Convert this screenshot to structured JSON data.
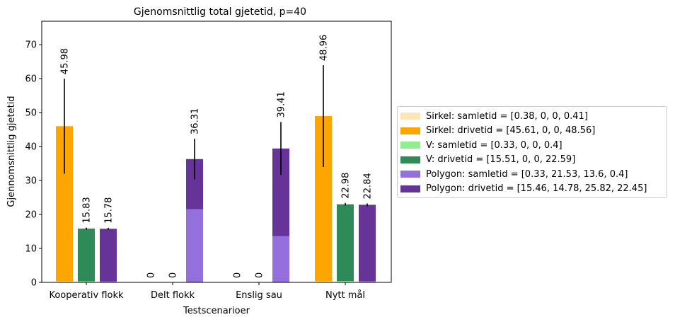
{
  "chart_data": {
    "type": "bar",
    "title": "Gjenomsnittlig total gjetetid, p=40",
    "xlabel": "Testscenarioer",
    "ylabel": "Gjennomsnittlig gjetetid",
    "categories": [
      "Kooperativ flokk",
      "Delt flokk",
      "Enslig sau",
      "Nytt mål"
    ],
    "ylim": [
      0,
      76.9
    ],
    "yticks": [
      0,
      10,
      20,
      30,
      40,
      50,
      60,
      70
    ],
    "grid": false,
    "legend_placement": "right",
    "groups": [
      {
        "name": "Sirkel",
        "samletid": [
          0.38,
          0,
          0,
          0.41
        ],
        "drivetid": [
          45.61,
          0,
          0,
          48.56
        ],
        "totals": [
          45.98,
          0,
          0,
          48.96
        ],
        "total_labels": [
          "45.98",
          "0",
          "0",
          "48.96"
        ],
        "errors": [
          14,
          0,
          0,
          15
        ],
        "samle_color": "#ffe4b5",
        "drive_color": "#ffa500"
      },
      {
        "name": "V",
        "samletid": [
          0.33,
          0,
          0,
          0.4
        ],
        "drivetid": [
          15.51,
          0,
          0,
          22.59
        ],
        "totals": [
          15.83,
          0,
          0,
          22.98
        ],
        "total_labels": [
          "15.83",
          "0",
          "0",
          "22.98"
        ],
        "errors": [
          0.3,
          0,
          0,
          0.4
        ],
        "samle_color": "#90ee90",
        "drive_color": "#2e8b57"
      },
      {
        "name": "Polygon",
        "samletid": [
          0.33,
          21.53,
          13.6,
          0.4
        ],
        "drivetid": [
          15.46,
          14.78,
          25.82,
          22.45
        ],
        "totals": [
          15.78,
          36.31,
          39.41,
          22.84
        ],
        "total_labels": [
          "15.78",
          "36.31",
          "39.41",
          "22.84"
        ],
        "errors": [
          0.3,
          6,
          7.8,
          0.4
        ],
        "samle_color": "#9370db",
        "drive_color": "#663399"
      }
    ],
    "legend": [
      {
        "label": "Sirkel: samletid = [0.38, 0, 0, 0.41]",
        "color": "#ffe4b5"
      },
      {
        "label": "Sirkel: drivetid = [45.61, 0, 0, 48.56]",
        "color": "#ffa500"
      },
      {
        "label": "V: samletid = [0.33, 0, 0, 0.4]",
        "color": "#90ee90"
      },
      {
        "label": "V: drivetid = [15.51, 0, 0, 22.59]",
        "color": "#2e8b57"
      },
      {
        "label": "Polygon: samletid = [0.33, 21.53, 13.6, 0.4]",
        "color": "#9370db"
      },
      {
        "label": "Polygon: drivetid = [15.46, 14.78, 25.82, 22.45]",
        "color": "#663399"
      }
    ]
  }
}
